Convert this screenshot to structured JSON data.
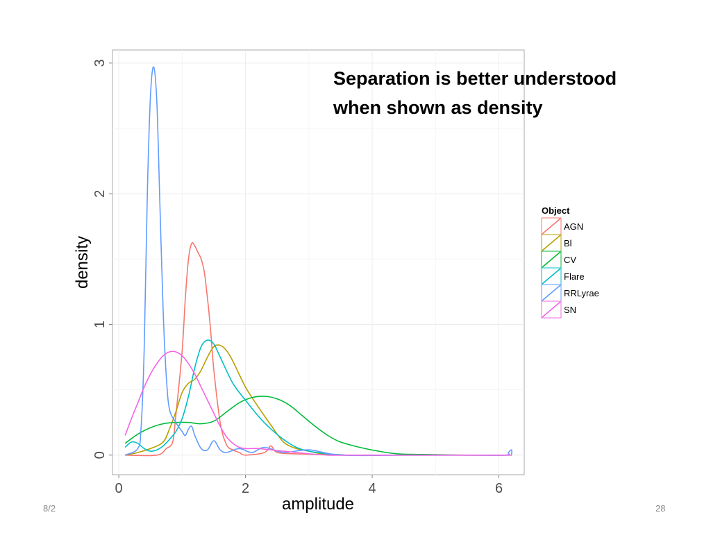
{
  "slide": {
    "headline_line1": "Separation is better understood",
    "headline_line2": "when shown as density",
    "footer_date": "8/2",
    "page_number": "28"
  },
  "chart_data": {
    "type": "line",
    "title": "",
    "xlabel": "amplitude",
    "ylabel": "density",
    "xlim": [
      -0.1,
      6.4
    ],
    "ylim": [
      -0.15,
      3.1
    ],
    "x_ticks": [
      0,
      2,
      4,
      6
    ],
    "x_tick_labels": [
      "0",
      "2",
      "4",
      "6"
    ],
    "y_ticks": [
      0,
      1,
      2,
      3
    ],
    "y_tick_labels": [
      "0",
      "1",
      "2",
      "3"
    ],
    "grid": true,
    "legend_title": "Object",
    "legend_position": "right",
    "series": [
      {
        "name": "AGN",
        "color": "#F8766D",
        "x": [
          0.1,
          0.6,
          0.75,
          0.85,
          0.9,
          1.0,
          1.05,
          1.1,
          1.15,
          1.2,
          1.25,
          1.3,
          1.35,
          1.4,
          1.45,
          1.5,
          1.6,
          1.7,
          1.8,
          1.9,
          2.0,
          2.3,
          2.4,
          2.5,
          2.8,
          3.5
        ],
        "y": [
          0,
          0,
          0.05,
          0.1,
          0.3,
          0.8,
          1.2,
          1.5,
          1.62,
          1.6,
          1.55,
          1.5,
          1.4,
          1.2,
          0.95,
          0.65,
          0.25,
          0.08,
          0.04,
          0.02,
          0,
          0.02,
          0.07,
          0.02,
          0.01,
          0
        ]
      },
      {
        "name": "Bl",
        "color": "#B79F00",
        "x": [
          0.1,
          0.3,
          0.5,
          0.7,
          0.8,
          0.9,
          1.0,
          1.1,
          1.2,
          1.3,
          1.4,
          1.5,
          1.6,
          1.7,
          1.8,
          2.0,
          2.2,
          2.4,
          2.6,
          2.8,
          3.0,
          3.2,
          3.5
        ],
        "y": [
          0,
          0.02,
          0.05,
          0.1,
          0.2,
          0.33,
          0.48,
          0.55,
          0.58,
          0.65,
          0.75,
          0.83,
          0.84,
          0.8,
          0.72,
          0.52,
          0.37,
          0.23,
          0.1,
          0.05,
          0.03,
          0.01,
          0
        ]
      },
      {
        "name": "CV",
        "color": "#00BA38",
        "x": [
          0.1,
          0.3,
          0.5,
          0.7,
          0.9,
          1.1,
          1.3,
          1.5,
          1.7,
          1.9,
          2.1,
          2.3,
          2.5,
          2.7,
          2.9,
          3.1,
          3.3,
          3.5,
          3.8,
          4.1,
          4.4,
          4.8,
          5.5,
          6.2
        ],
        "y": [
          0.09,
          0.16,
          0.21,
          0.24,
          0.25,
          0.25,
          0.24,
          0.26,
          0.33,
          0.4,
          0.44,
          0.45,
          0.43,
          0.38,
          0.3,
          0.22,
          0.15,
          0.1,
          0.06,
          0.03,
          0.01,
          0.005,
          0,
          0
        ]
      },
      {
        "name": "Flare",
        "color": "#00BFC4",
        "x": [
          0.1,
          0.2,
          0.3,
          0.4,
          0.5,
          0.6,
          0.7,
          0.8,
          0.9,
          1.0,
          1.1,
          1.2,
          1.3,
          1.4,
          1.5,
          1.6,
          1.8,
          2.0,
          2.2,
          2.4,
          2.6,
          2.8,
          3.0,
          3.3,
          3.6
        ],
        "y": [
          0.06,
          0.1,
          0.09,
          0.05,
          0.03,
          0.04,
          0.07,
          0.12,
          0.18,
          0.28,
          0.45,
          0.67,
          0.83,
          0.88,
          0.85,
          0.75,
          0.55,
          0.42,
          0.3,
          0.2,
          0.12,
          0.06,
          0.03,
          0.01,
          0
        ]
      },
      {
        "name": "RRLyrae",
        "color": "#619CFF",
        "x": [
          0.1,
          0.3,
          0.35,
          0.4,
          0.45,
          0.5,
          0.55,
          0.6,
          0.65,
          0.7,
          0.75,
          0.8,
          0.9,
          1.0,
          1.05,
          1.1,
          1.15,
          1.2,
          1.3,
          1.4,
          1.5,
          1.6,
          1.7,
          1.9,
          2.1,
          2.3,
          2.6,
          3.0,
          3.5,
          4.5,
          5.5,
          6.1,
          6.15,
          6.2,
          6.2
        ],
        "y": [
          0,
          0.05,
          0.2,
          0.8,
          2.0,
          2.75,
          2.97,
          2.7,
          1.9,
          1.1,
          0.6,
          0.35,
          0.25,
          0.18,
          0.15,
          0.2,
          0.22,
          0.15,
          0.05,
          0.04,
          0.11,
          0.04,
          0.02,
          0.05,
          0.02,
          0.06,
          0.02,
          0.04,
          0,
          0,
          0,
          0,
          0.02,
          0.04,
          0
        ]
      },
      {
        "name": "SN",
        "color": "#F564E3",
        "x": [
          0.1,
          0.2,
          0.3,
          0.4,
          0.5,
          0.6,
          0.7,
          0.8,
          0.9,
          1.0,
          1.1,
          1.2,
          1.3,
          1.4,
          1.5,
          1.6,
          1.7,
          1.8,
          1.9,
          2.0,
          2.2,
          2.4,
          2.6,
          2.8,
          3.0,
          3.3,
          3.6,
          5.0,
          6.2
        ],
        "y": [
          0.15,
          0.28,
          0.4,
          0.52,
          0.62,
          0.7,
          0.76,
          0.79,
          0.79,
          0.76,
          0.7,
          0.62,
          0.52,
          0.42,
          0.32,
          0.22,
          0.14,
          0.09,
          0.06,
          0.05,
          0.05,
          0.04,
          0.03,
          0.02,
          0.01,
          0,
          0,
          0,
          0
        ]
      }
    ]
  }
}
